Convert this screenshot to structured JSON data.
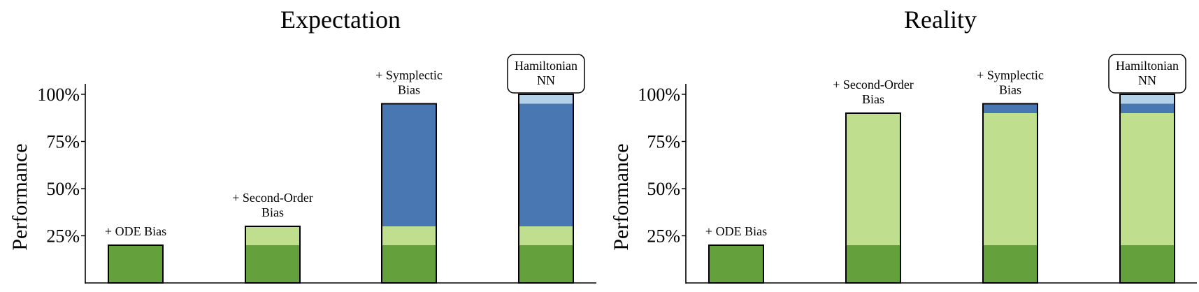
{
  "colors": {
    "base": "#64A03C",
    "second_order": "#C0DF8E",
    "symplectic": "#4877B2",
    "hamiltonian": "#B4D1E8",
    "axis": "#000000"
  },
  "chart_data": [
    {
      "type": "bar",
      "stacked": true,
      "title": "Expectation",
      "ylabel": "Performance",
      "ylim": [
        0,
        105
      ],
      "yticks": [
        "25%",
        "50%",
        "75%",
        "100%"
      ],
      "ytick_values": [
        25,
        50,
        75,
        100
      ],
      "categories": [
        "+ ODE Bias",
        "+ Second-Order Bias",
        "+ Symplectic Bias",
        "Hamiltonian NN"
      ],
      "category_labels": [
        [
          "+ ODE Bias"
        ],
        [
          "+ Second-Order",
          "Bias"
        ],
        [
          "+ Symplectic",
          "Bias"
        ],
        [
          "Hamiltonian",
          "NN"
        ]
      ],
      "boxed_label": [
        false,
        false,
        false,
        true
      ],
      "segments": [
        [
          {
            "color_key": "base",
            "value": 20
          }
        ],
        [
          {
            "color_key": "base",
            "value": 20
          },
          {
            "color_key": "second_order",
            "value": 10
          }
        ],
        [
          {
            "color_key": "base",
            "value": 20
          },
          {
            "color_key": "second_order",
            "value": 10
          },
          {
            "color_key": "symplectic",
            "value": 65
          }
        ],
        [
          {
            "color_key": "base",
            "value": 20
          },
          {
            "color_key": "second_order",
            "value": 10
          },
          {
            "color_key": "symplectic",
            "value": 65
          },
          {
            "color_key": "hamiltonian",
            "value": 5
          }
        ]
      ],
      "totals": [
        20,
        30,
        95,
        100
      ]
    },
    {
      "type": "bar",
      "stacked": true,
      "title": "Reality",
      "ylabel": "Performance",
      "ylim": [
        0,
        105
      ],
      "yticks": [
        "25%",
        "50%",
        "75%",
        "100%"
      ],
      "ytick_values": [
        25,
        50,
        75,
        100
      ],
      "categories": [
        "+ ODE Bias",
        "+ Second-Order Bias",
        "+ Symplectic Bias",
        "Hamiltonian NN"
      ],
      "category_labels": [
        [
          "+ ODE Bias"
        ],
        [
          "+ Second-Order",
          "Bias"
        ],
        [
          "+ Symplectic",
          "Bias"
        ],
        [
          "Hamiltonian",
          "NN"
        ]
      ],
      "boxed_label": [
        false,
        false,
        false,
        true
      ],
      "segments": [
        [
          {
            "color_key": "base",
            "value": 20
          }
        ],
        [
          {
            "color_key": "base",
            "value": 20
          },
          {
            "color_key": "second_order",
            "value": 70
          }
        ],
        [
          {
            "color_key": "base",
            "value": 20
          },
          {
            "color_key": "second_order",
            "value": 70
          },
          {
            "color_key": "symplectic",
            "value": 5
          }
        ],
        [
          {
            "color_key": "base",
            "value": 20
          },
          {
            "color_key": "second_order",
            "value": 70
          },
          {
            "color_key": "symplectic",
            "value": 5
          },
          {
            "color_key": "hamiltonian",
            "value": 5
          }
        ]
      ],
      "totals": [
        20,
        90,
        95,
        100
      ]
    }
  ]
}
